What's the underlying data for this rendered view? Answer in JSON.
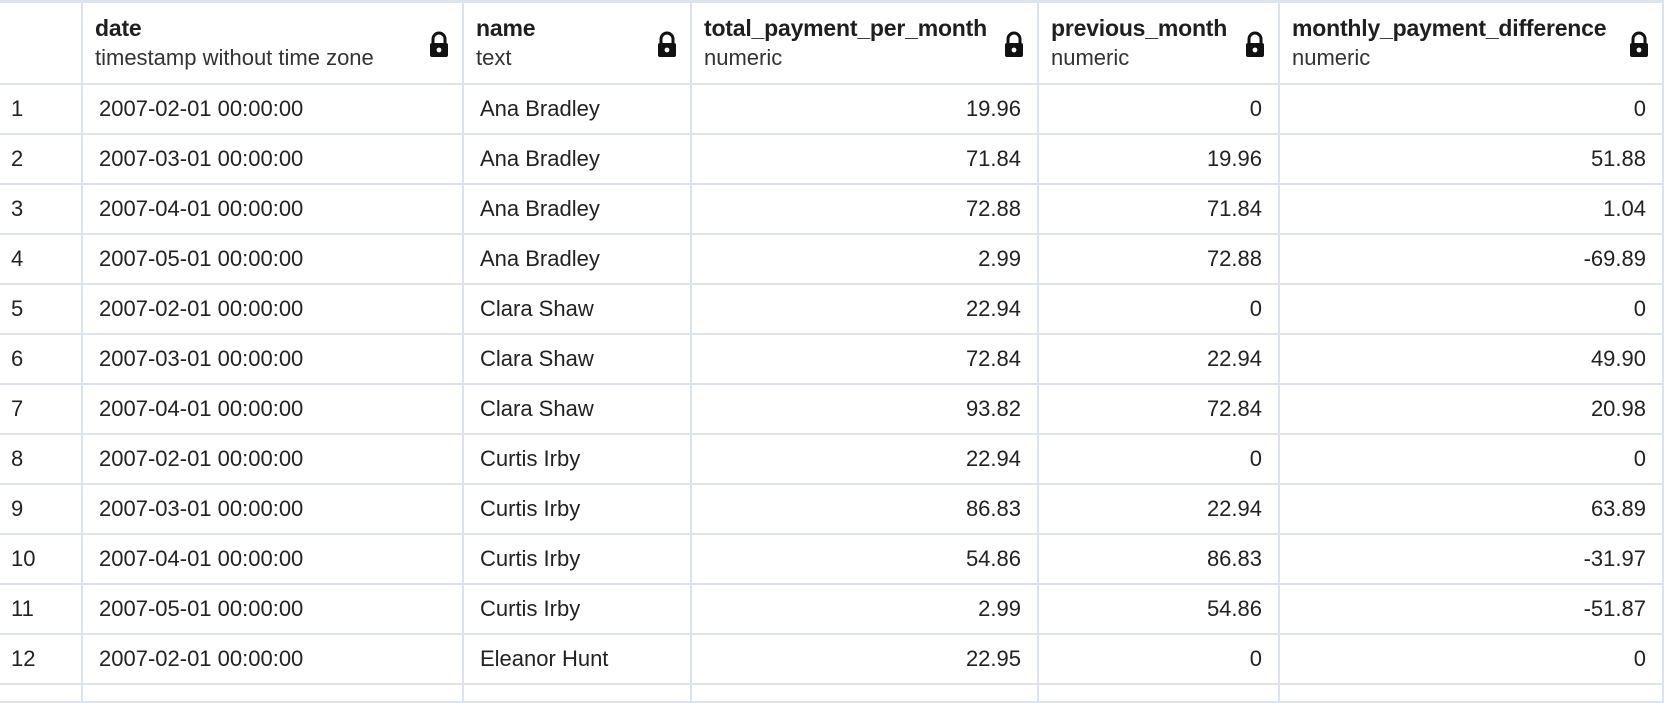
{
  "columns": [
    {
      "name": "",
      "type": ""
    },
    {
      "name": "date",
      "type": "timestamp without time zone"
    },
    {
      "name": "name",
      "type": "text"
    },
    {
      "name": "total_payment_per_month",
      "type": "numeric"
    },
    {
      "name": "previous_month",
      "type": "numeric"
    },
    {
      "name": "monthly_payment_difference",
      "type": "numeric"
    }
  ],
  "rows": [
    {
      "n": "1",
      "date": "2007-02-01 00:00:00",
      "name": "Ana Bradley",
      "total": "19.96",
      "prev": "0",
      "diff": "0"
    },
    {
      "n": "2",
      "date": "2007-03-01 00:00:00",
      "name": "Ana Bradley",
      "total": "71.84",
      "prev": "19.96",
      "diff": "51.88"
    },
    {
      "n": "3",
      "date": "2007-04-01 00:00:00",
      "name": "Ana Bradley",
      "total": "72.88",
      "prev": "71.84",
      "diff": "1.04"
    },
    {
      "n": "4",
      "date": "2007-05-01 00:00:00",
      "name": "Ana Bradley",
      "total": "2.99",
      "prev": "72.88",
      "diff": "-69.89"
    },
    {
      "n": "5",
      "date": "2007-02-01 00:00:00",
      "name": "Clara Shaw",
      "total": "22.94",
      "prev": "0",
      "diff": "0"
    },
    {
      "n": "6",
      "date": "2007-03-01 00:00:00",
      "name": "Clara Shaw",
      "total": "72.84",
      "prev": "22.94",
      "diff": "49.90"
    },
    {
      "n": "7",
      "date": "2007-04-01 00:00:00",
      "name": "Clara Shaw",
      "total": "93.82",
      "prev": "72.84",
      "diff": "20.98"
    },
    {
      "n": "8",
      "date": "2007-02-01 00:00:00",
      "name": "Curtis Irby",
      "total": "22.94",
      "prev": "0",
      "diff": "0"
    },
    {
      "n": "9",
      "date": "2007-03-01 00:00:00",
      "name": "Curtis Irby",
      "total": "86.83",
      "prev": "22.94",
      "diff": "63.89"
    },
    {
      "n": "10",
      "date": "2007-04-01 00:00:00",
      "name": "Curtis Irby",
      "total": "54.86",
      "prev": "86.83",
      "diff": "-31.97"
    },
    {
      "n": "11",
      "date": "2007-05-01 00:00:00",
      "name": "Curtis Irby",
      "total": "2.99",
      "prev": "54.86",
      "diff": "-51.87"
    },
    {
      "n": "12",
      "date": "2007-02-01 00:00:00",
      "name": "Eleanor Hunt",
      "total": "22.95",
      "prev": "0",
      "diff": "0"
    }
  ],
  "icons": {
    "column_lock": "lock-icon"
  },
  "colors": {
    "grid_line": "#dde3ea",
    "text": "#222222",
    "background": "#ffffff"
  }
}
